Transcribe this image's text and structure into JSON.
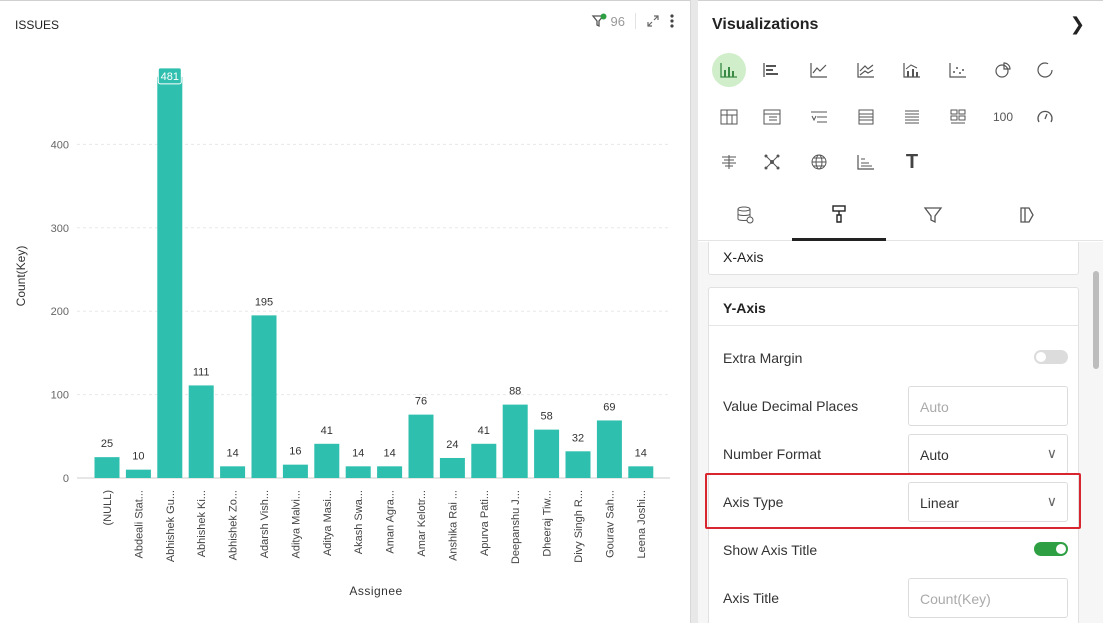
{
  "chart": {
    "title": "ISSUES",
    "filter_count": "96",
    "expand_icon": "expand-icon",
    "more_icon": "more-vertical-icon"
  },
  "chart_data": {
    "type": "bar",
    "categories": [
      "(NULL)",
      "Abdeali Stat...",
      "Abhishek Gu...",
      "Abhishek Ki...",
      "Abhishek Zo...",
      "Adarsh Vish...",
      "Aditya Malvi...",
      "Aditya Masi...",
      "Akash Swa...",
      "Aman Agra...",
      "Amar Kelotr...",
      "Anshika Rai ...",
      "Apurva Pati...",
      "Deepanshu J...",
      "Dheeraj Tiw...",
      "Divy Singh R...",
      "Gourav Sah...",
      "Leena Joshi..."
    ],
    "values": [
      25,
      10,
      481,
      111,
      14,
      195,
      16,
      41,
      14,
      14,
      76,
      24,
      41,
      88,
      58,
      32,
      69,
      14
    ],
    "title": "",
    "xlabel": "Assignee",
    "ylabel": "Count(Key)",
    "yticks": [
      0,
      100,
      200,
      300,
      400
    ],
    "ylim": [
      0,
      500
    ],
    "grid": true,
    "color": "#2fbfae",
    "highlight_label": "481"
  },
  "viz": {
    "title": "Visualizations",
    "icons": [
      [
        "bar-chart-icon",
        "horizontal-bar-icon",
        "line-chart-icon",
        "area-chart-icon",
        "combo-chart-icon",
        "scatter-icon",
        "pie-chart-icon",
        "donut-icon"
      ],
      [
        "pivot-table-icon",
        "table-icon",
        "sorted-list-icon",
        "grid-table-icon",
        "list-icon",
        "tiles-icon",
        "number-icon",
        "gauge-icon"
      ],
      [
        "funnel-bars-icon",
        "network-icon",
        "globe-map-icon",
        "step-chart-icon",
        "text-icon"
      ]
    ],
    "number_label": "100",
    "text_label": "T",
    "tabs": [
      "data-source-icon",
      "paint-roller-icon",
      "filter-icon",
      "highlighter-icon"
    ]
  },
  "settings": {
    "x_axis_title": "X-Axis",
    "y_axis_title": "Y-Axis",
    "extra_margin_label": "Extra Margin",
    "value_decimal_label": "Value Decimal Places",
    "value_decimal_placeholder": "Auto",
    "number_format_label": "Number Format",
    "number_format_value": "Auto",
    "axis_type_label": "Axis Type",
    "axis_type_value": "Linear",
    "show_axis_title_label": "Show Axis Title",
    "axis_title_label": "Axis Title",
    "axis_title_placeholder": "Count(Key)"
  }
}
